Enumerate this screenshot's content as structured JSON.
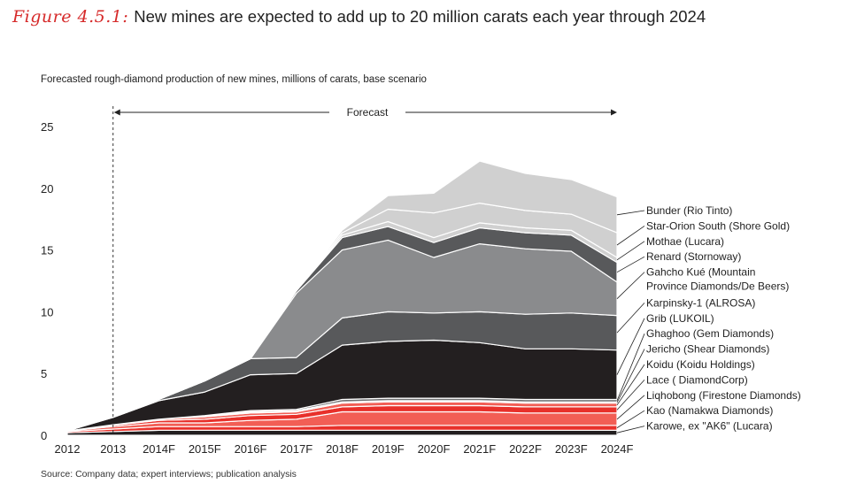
{
  "header": {
    "figure_label": "Figure 4.5.1:",
    "title": "New mines are expected to add up to 20 million carats each year through 2024",
    "subtitle": "Forecasted rough-diamond production of new mines, millions of carats, base scenario",
    "source": "Source:  Company data; expert interviews; publication analysis"
  },
  "chart_data": {
    "type": "area",
    "stacked": true,
    "title": "New mines are expected to add up to 20 million carats each year through 2024",
    "ylabel": "Forecasted rough-diamond production of new mines, millions of carats, base scenario",
    "xlabel": "",
    "x": [
      "2012",
      "2013",
      "2014F",
      "2015F",
      "2016F",
      "2017F",
      "2018F",
      "2019F",
      "2020F",
      "2021F",
      "2022F",
      "2023F",
      "2024F"
    ],
    "ylim": [
      0,
      25
    ],
    "yticks": [
      "0",
      "5",
      "10",
      "15",
      "20",
      "25"
    ],
    "forecast_label": "Forecast",
    "forecast_start": "2013",
    "series": [
      {
        "name": "Karowe, ex \"AK6\" (Lucara)",
        "color": "#231f20",
        "values": [
          0.2,
          0.3,
          0.4,
          0.4,
          0.4,
          0.4,
          0.4,
          0.4,
          0.4,
          0.4,
          0.4,
          0.4,
          0.4
        ]
      },
      {
        "name": "Kao (Namakwa Diamonds)",
        "color": "#e8302a",
        "values": [
          0.1,
          0.2,
          0.3,
          0.3,
          0.3,
          0.3,
          0.4,
          0.4,
          0.4,
          0.4,
          0.4,
          0.4,
          0.4
        ]
      },
      {
        "name": "Liqhobong (Firestone Diamonds)",
        "color": "#f25e55",
        "values": [
          0.05,
          0.2,
          0.3,
          0.3,
          0.5,
          0.6,
          1.1,
          1.1,
          1.1,
          1.1,
          1.0,
          1.0,
          1.0
        ]
      },
      {
        "name": "Lace ( DiamondCorp)",
        "color": "#e8302a",
        "values": [
          0,
          0.1,
          0.2,
          0.3,
          0.4,
          0.4,
          0.4,
          0.5,
          0.5,
          0.5,
          0.5,
          0.5,
          0.5
        ]
      },
      {
        "name": "Koidu (Koidu Holdings)",
        "color": "#f25e55",
        "values": [
          0,
          0.05,
          0.1,
          0.2,
          0.2,
          0.2,
          0.3,
          0.3,
          0.3,
          0.3,
          0.3,
          0.3,
          0.3
        ]
      },
      {
        "name": "Jericho (Shear Diamonds)",
        "color": "#d0d0d0",
        "values": [
          0,
          0,
          0,
          0.05,
          0.1,
          0.1,
          0.1,
          0.1,
          0.1,
          0.1,
          0.1,
          0.1,
          0.1
        ]
      },
      {
        "name": "Ghaghoo (Gem Diamonds)",
        "color": "#6d6e70",
        "values": [
          0,
          0,
          0,
          0.05,
          0.1,
          0.1,
          0.2,
          0.2,
          0.2,
          0.2,
          0.2,
          0.2,
          0.2
        ]
      },
      {
        "name": "Grib (LUKOIL)",
        "color": "#231f20",
        "values": [
          0,
          0.6,
          1.5,
          1.9,
          2.9,
          2.9,
          4.4,
          4.6,
          4.7,
          4.5,
          4.1,
          4.1,
          4.0
        ]
      },
      {
        "name": "Karpinsky-1 (ALROSA)",
        "color": "#58595b",
        "values": [
          0,
          0.05,
          0.1,
          0.9,
          1.3,
          1.3,
          2.2,
          2.4,
          2.2,
          2.5,
          2.8,
          2.9,
          2.8
        ]
      },
      {
        "name": "Gahcho Kué (Mountain Province Diamonds/De Beers)",
        "color": "#8a8b8d",
        "values": [
          0,
          0,
          0,
          0,
          0,
          5.2,
          5.5,
          5.8,
          4.5,
          5.5,
          5.3,
          5.0,
          2.7
        ]
      },
      {
        "name": "Renard (Stornoway)",
        "color": "#58595b",
        "values": [
          0,
          0,
          0,
          0,
          0,
          0.2,
          1.0,
          1.1,
          1.2,
          1.3,
          1.3,
          1.3,
          1.6
        ]
      },
      {
        "name": "Mothae (Lucara)",
        "color": "#d0d0d0",
        "values": [
          0,
          0,
          0,
          0,
          0,
          0,
          0.2,
          0.4,
          0.4,
          0.4,
          0.4,
          0.4,
          0.4
        ]
      },
      {
        "name": "Star-Orion South (Shore Gold)",
        "color": "#d0d0d0",
        "values": [
          0,
          0,
          0,
          0,
          0,
          0,
          0.2,
          1.0,
          2.0,
          1.6,
          1.4,
          1.3,
          2.0
        ]
      },
      {
        "name": "Bunder (Rio Tinto)",
        "color": "#d0d0d0",
        "values": [
          0,
          0,
          0,
          0,
          0,
          0,
          0.2,
          1.1,
          1.6,
          3.4,
          3.0,
          2.8,
          2.9
        ]
      }
    ]
  }
}
